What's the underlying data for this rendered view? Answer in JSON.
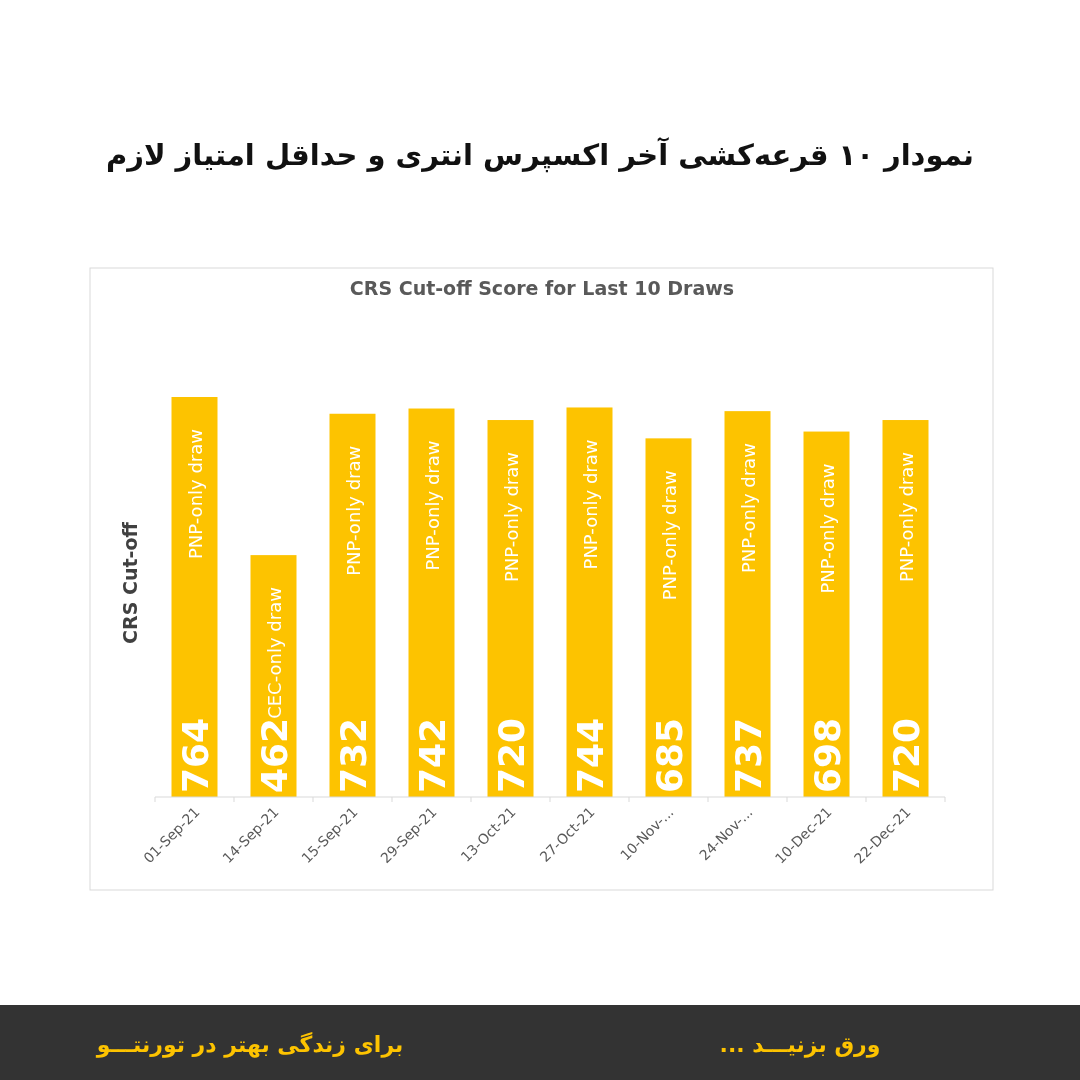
{
  "chart_data": {
    "type": "bar",
    "title": "نمودار ۱۰ قرعه‌کشی آخر اکسپرس انتری و حداقل امتیاز لازم",
    "subtitle": "CRS Cut-off Score for Last 10 Draws",
    "ylabel": "CRS Cut-off",
    "categories": [
      "01-Sep-21",
      "14-Sep-21",
      "15-Sep-21",
      "29-Sep-21",
      "13-Oct-21",
      "27-Oct-21",
      "10-Nov-...",
      "24-Nov-...",
      "10-Dec-21",
      "22-Dec-21"
    ],
    "values": [
      764,
      462,
      732,
      742,
      720,
      744,
      685,
      737,
      698,
      720
    ],
    "color": "#fdc300",
    "data_labels": true,
    "annotations": [
      {
        "text": "PNP-only draw",
        "x": "01-Sep-21"
      },
      {
        "text": "CEC-only draw",
        "x": "14-Sep-21"
      },
      {
        "text": "PNP-only draw",
        "x": "15-Sep-21"
      },
      {
        "text": "PNP-only draw",
        "x": "29-Sep-21"
      },
      {
        "text": "PNP-only draw",
        "x": "13-Oct-21"
      },
      {
        "text": "PNP-only draw",
        "x": "27-Oct-21"
      },
      {
        "text": "PNP-only draw",
        "x": "10-Nov-..."
      },
      {
        "text": "PNP-only draw",
        "x": "24-Nov-..."
      },
      {
        "text": "PNP-only draw",
        "x": "10-Dec-21"
      },
      {
        "text": "PNP-only draw",
        "x": "22-Dec-21"
      },
      "ورق بزنیـــد ...",
      "برای زندگی بهتر در تورنتـــو"
    ]
  }
}
